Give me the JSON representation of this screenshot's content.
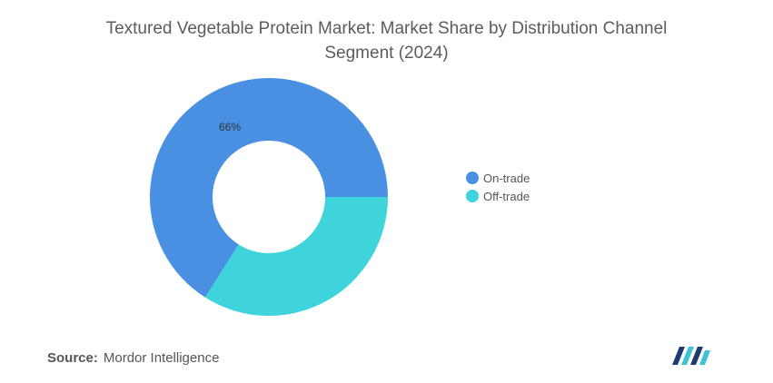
{
  "title": "Textured Vegetable Protein Market: Market Share by Distribution Channel Segment (2024)",
  "chart_data": {
    "type": "pie",
    "donut": true,
    "title": "Textured Vegetable Protein Market: Market Share by Distribution Channel Segment (2024)",
    "slices": [
      {
        "label": "On-trade",
        "value": 66,
        "data_label": "66%",
        "color": "#4a90e2"
      },
      {
        "label": "Off-trade",
        "value": 34,
        "data_label": "",
        "color": "#3fd3dc"
      }
    ],
    "legend_position": "right"
  },
  "legend": {
    "items": [
      {
        "label": "On-trade",
        "color": "#4a90e2"
      },
      {
        "label": "Off-trade",
        "color": "#3fd3dc"
      }
    ]
  },
  "source": {
    "key": "Source:",
    "value": "Mordor Intelligence"
  },
  "logo": {
    "icon": "mordor-intelligence-logo-icon",
    "colors": [
      "#1f3a6e",
      "#3fc1d6"
    ]
  }
}
